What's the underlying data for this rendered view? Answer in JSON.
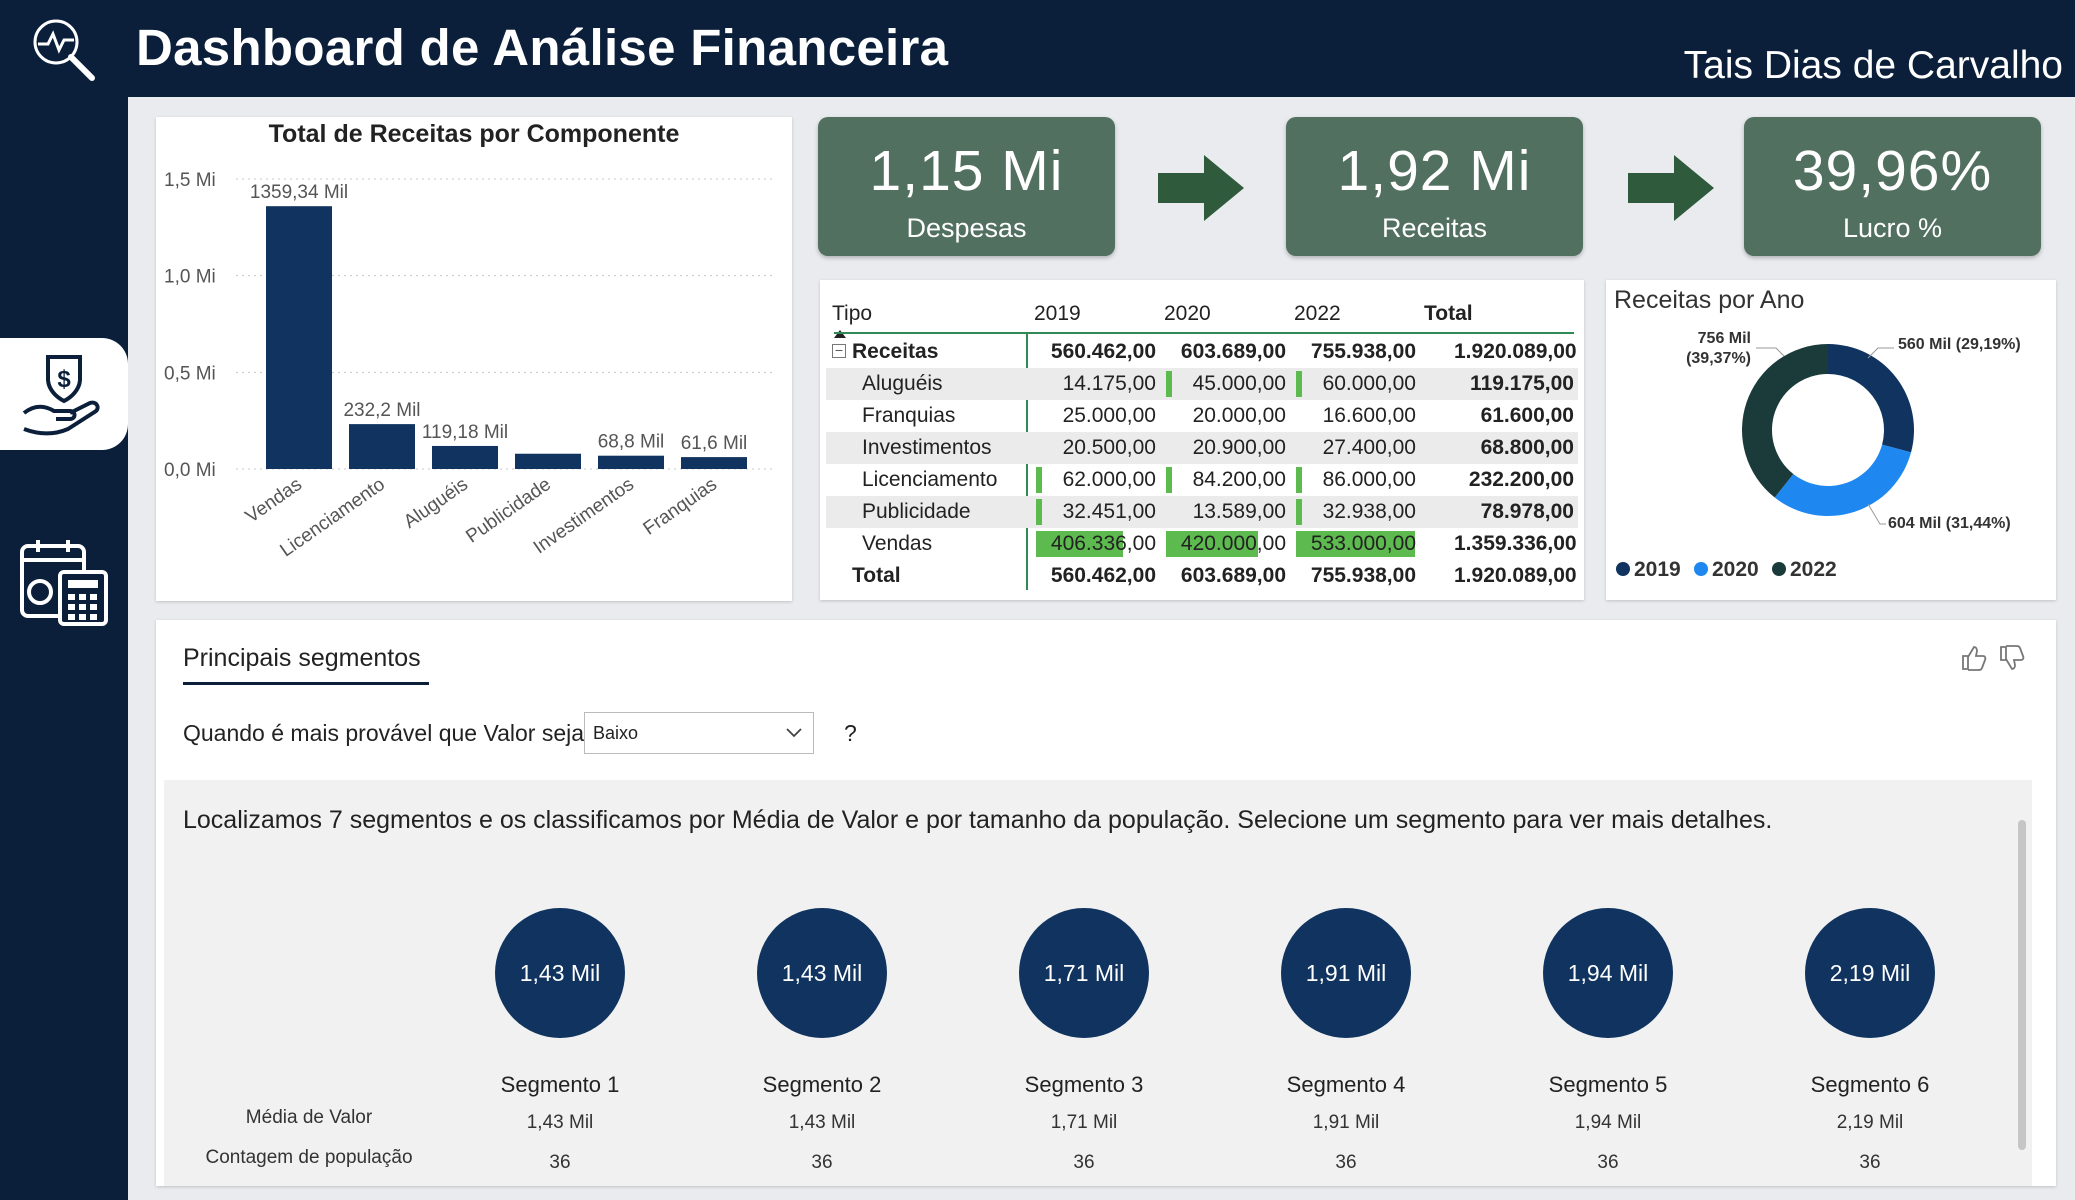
{
  "header": {
    "title": "Dashboard de Análise Financeira",
    "author": "Tais Dias de Carvalho"
  },
  "sidebar": {
    "items": [
      {
        "icon": "hand-money-icon",
        "active": true
      },
      {
        "icon": "calendar-calculator-icon",
        "active": false
      }
    ]
  },
  "kpis": [
    {
      "value": "1,15 Mi",
      "label": "Despesas"
    },
    {
      "value": "1,92 Mi",
      "label": "Receitas"
    },
    {
      "value": "39,96%",
      "label": "Lucro %"
    }
  ],
  "chart_data": [
    {
      "type": "bar",
      "title": "Total de Receitas por Componente",
      "categories": [
        "Vendas",
        "Licenciamento",
        "Aluguéis",
        "Publicidade",
        "Investimentos",
        "Franquias"
      ],
      "values": [
        1359.34,
        232.2,
        119.18,
        78.98,
        68.8,
        61.6
      ],
      "data_labels": [
        "1359,34 Mil",
        "232,2 Mil",
        "119,18 Mil",
        "",
        "68,8 Mil",
        "61,6 Mil"
      ],
      "y_ticks": [
        "0,0 Mi",
        "0,5 Mi",
        "1,0 Mi",
        "1,5 Mi"
      ],
      "ylim": [
        0,
        1500
      ],
      "grid": true,
      "color": "#10345f"
    },
    {
      "type": "pie",
      "title": "Receitas por Ano",
      "donut": true,
      "categories": [
        "2019",
        "2020",
        "2022"
      ],
      "values": [
        560462,
        603689,
        755938
      ],
      "data_labels": [
        "560 Mil (29,19%)",
        "604 Mil (31,44%)",
        "756 Mil (39,37%)"
      ],
      "colors": [
        "#10345f",
        "#1e88f0",
        "#1b3b3a"
      ],
      "legend": "bottom-left"
    }
  ],
  "matrix": {
    "columns": [
      "Tipo",
      "2019",
      "2020",
      "2022",
      "Total"
    ],
    "rows": [
      {
        "label": "Receitas",
        "values": [
          "560.462,00",
          "603.689,00",
          "755.938,00",
          "1.920.089,00"
        ],
        "bold": true,
        "group": true
      },
      {
        "label": "Aluguéis",
        "values": [
          "14.175,00",
          "45.000,00",
          "60.000,00",
          "119.175,00"
        ],
        "bars": [
          0.0,
          0.02,
          0.02
        ]
      },
      {
        "label": "Franquias",
        "values": [
          "25.000,00",
          "20.000,00",
          "16.600,00",
          "61.600,00"
        ],
        "bars": [
          0.0,
          0.0,
          0.0
        ]
      },
      {
        "label": "Investimentos",
        "values": [
          "20.500,00",
          "20.900,00",
          "27.400,00",
          "68.800,00"
        ],
        "bars": [
          0.0,
          0.0,
          0.0
        ]
      },
      {
        "label": "Licenciamento",
        "values": [
          "62.000,00",
          "84.200,00",
          "86.000,00",
          "232.200,00"
        ],
        "bars": [
          0.03,
          0.03,
          0.03
        ]
      },
      {
        "label": "Publicidade",
        "values": [
          "32.451,00",
          "13.589,00",
          "32.938,00",
          "78.978,00"
        ],
        "bars": [
          0.01,
          0.0,
          0.01
        ]
      },
      {
        "label": "Vendas",
        "values": [
          "406.336,00",
          "420.000,00",
          "533.000,00",
          "1.359.336,00"
        ],
        "bars": [
          0.7,
          0.74,
          0.96
        ]
      },
      {
        "label": "Total",
        "values": [
          "560.462,00",
          "603.689,00",
          "755.938,00",
          "1.920.089,00"
        ],
        "bold": true
      }
    ]
  },
  "segments": {
    "tab": "Principais segmentos",
    "question": "Quando é mais provável que Valor seja",
    "dropdown_value": "Baixo",
    "question_mark": "?",
    "description": "Localizamos 7 segmentos e os classificamos por Média de Valor e por tamanho da população. Selecione um segmento para ver mais detalhes.",
    "row_labels": [
      "Média de Valor",
      "Contagem de população"
    ],
    "items": [
      {
        "bubble": "1,43 Mil",
        "name": "Segmento 1",
        "media": "1,43 Mil",
        "count": "36"
      },
      {
        "bubble": "1,43 Mil",
        "name": "Segmento 2",
        "media": "1,43 Mil",
        "count": "36"
      },
      {
        "bubble": "1,71 Mil",
        "name": "Segmento 3",
        "media": "1,71 Mil",
        "count": "36"
      },
      {
        "bubble": "1,91 Mil",
        "name": "Segmento 4",
        "media": "1,91 Mil",
        "count": "36"
      },
      {
        "bubble": "1,94 Mil",
        "name": "Segmento 5",
        "media": "1,94 Mil",
        "count": "36"
      },
      {
        "bubble": "2,19 Mil",
        "name": "Segmento 6",
        "media": "2,19 Mil",
        "count": "36"
      }
    ]
  }
}
